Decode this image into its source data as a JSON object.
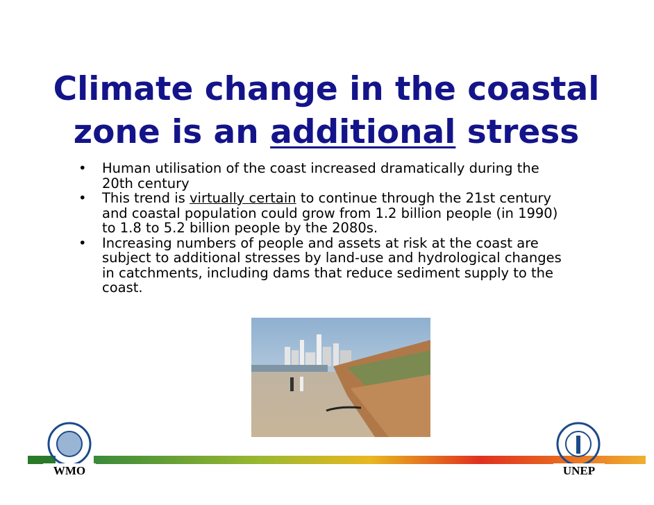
{
  "title": {
    "line1": "Climate change in the coastal",
    "line2_start": "zone is an",
    "line2_underlined": "additional",
    "line2_end": "stress"
  },
  "bullets": [
    {
      "text": "Human utilisation of the coast increased dramatically during the 20th century"
    },
    {
      "before": "This trend is",
      "underlined": "virtually certain",
      "after": "to continue through the 21st century and coastal population could grow from 1.2 billion people (in 1990) to 1.8 to 5.2 billion people by the 2080s."
    },
    {
      "text": "Increasing numbers of people and assets at risk at the coast are subject to additional stresses by land-use and hydrological changes in catchments, including dams that reduce sediment supply to the coast."
    }
  ],
  "logos": {
    "left": "WMO",
    "right": "UNEP"
  }
}
